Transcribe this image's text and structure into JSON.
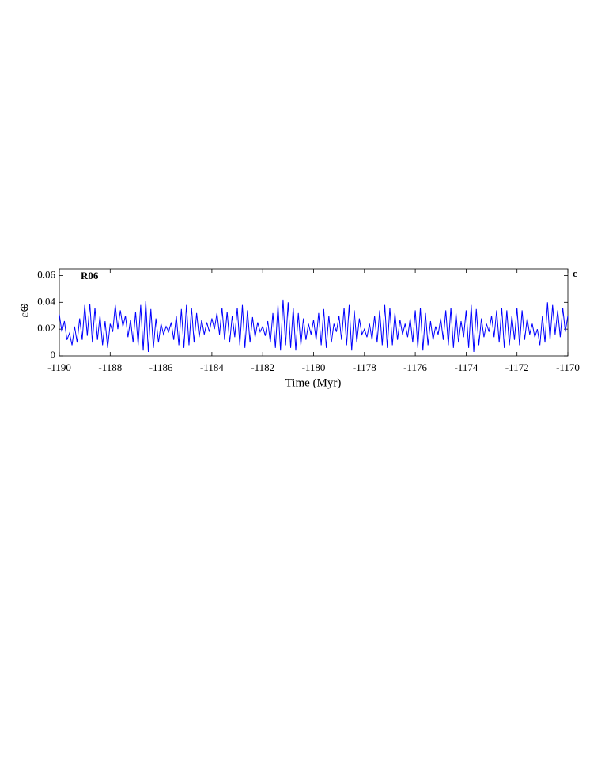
{
  "chart_data": {
    "type": "line",
    "xlabel": "Time (Myr)",
    "ylabel": "ε⊕",
    "annotation": "R06",
    "panel_label": "c",
    "color": "#0000ff",
    "xlim": [
      -1190,
      -1170
    ],
    "xticks": [
      -1190,
      -1188,
      -1186,
      -1184,
      -1182,
      -1180,
      -1178,
      -1176,
      -1174,
      -1172,
      -1170
    ],
    "ylim": [
      0,
      0.065
    ],
    "yticks": [
      0,
      0.02,
      0.04,
      0.06
    ],
    "x": [
      -1190,
      -1189.9,
      -1189.8,
      -1189.7,
      -1189.6,
      -1189.5,
      -1189.4,
      -1189.3,
      -1189.2,
      -1189.1,
      -1189,
      -1188.9,
      -1188.8,
      -1188.7,
      -1188.6,
      -1188.5,
      -1188.4,
      -1188.3,
      -1188.2,
      -1188.1,
      -1188,
      -1187.9,
      -1187.8,
      -1187.7,
      -1187.6,
      -1187.5,
      -1187.4,
      -1187.3,
      -1187.2,
      -1187.1,
      -1187,
      -1186.9,
      -1186.8,
      -1186.7,
      -1186.6,
      -1186.5,
      -1186.4,
      -1186.3,
      -1186.2,
      -1186.1,
      -1186,
      -1185.9,
      -1185.8,
      -1185.7,
      -1185.6,
      -1185.5,
      -1185.4,
      -1185.3,
      -1185.2,
      -1185.1,
      -1185,
      -1184.9,
      -1184.8,
      -1184.7,
      -1184.6,
      -1184.5,
      -1184.4,
      -1184.3,
      -1184.2,
      -1184.1,
      -1184,
      -1183.9,
      -1183.8,
      -1183.7,
      -1183.6,
      -1183.5,
      -1183.4,
      -1183.3,
      -1183.2,
      -1183.1,
      -1183,
      -1182.9,
      -1182.8,
      -1182.7,
      -1182.6,
      -1182.5,
      -1182.4,
      -1182.3,
      -1182.2,
      -1182.1,
      -1182,
      -1181.9,
      -1181.8,
      -1181.7,
      -1181.6,
      -1181.5,
      -1181.4,
      -1181.3,
      -1181.2,
      -1181.1,
      -1181,
      -1180.9,
      -1180.8,
      -1180.7,
      -1180.6,
      -1180.5,
      -1180.4,
      -1180.3,
      -1180.2,
      -1180.1,
      -1180,
      -1179.9,
      -1179.8,
      -1179.7,
      -1179.6,
      -1179.5,
      -1179.4,
      -1179.3,
      -1179.2,
      -1179.1,
      -1179,
      -1178.9,
      -1178.8,
      -1178.7,
      -1178.6,
      -1178.5,
      -1178.4,
      -1178.3,
      -1178.2,
      -1178.1,
      -1178,
      -1177.9,
      -1177.8,
      -1177.7,
      -1177.6,
      -1177.5,
      -1177.4,
      -1177.3,
      -1177.2,
      -1177.1,
      -1177,
      -1176.9,
      -1176.8,
      -1176.7,
      -1176.6,
      -1176.5,
      -1176.4,
      -1176.3,
      -1176.2,
      -1176.1,
      -1176,
      -1175.9,
      -1175.8,
      -1175.7,
      -1175.6,
      -1175.5,
      -1175.4,
      -1175.3,
      -1175.2,
      -1175.1,
      -1175,
      -1174.9,
      -1174.8,
      -1174.7,
      -1174.6,
      -1174.5,
      -1174.4,
      -1174.3,
      -1174.2,
      -1174.1,
      -1174,
      -1173.9,
      -1173.8,
      -1173.7,
      -1173.6,
      -1173.5,
      -1173.4,
      -1173.3,
      -1173.2,
      -1173.1,
      -1173,
      -1172.9,
      -1172.8,
      -1172.7,
      -1172.6,
      -1172.5,
      -1172.4,
      -1172.3,
      -1172.2,
      -1172.1,
      -1172,
      -1171.9,
      -1171.8,
      -1171.7,
      -1171.6,
      -1171.5,
      -1171.4,
      -1171.3,
      -1171.2,
      -1171.1,
      -1171,
      -1170.9,
      -1170.8,
      -1170.7,
      -1170.6,
      -1170.5,
      -1170.4,
      -1170.3,
      -1170.2,
      -1170.1,
      -1170
    ],
    "values": [
      0.031,
      0.018,
      0.026,
      0.012,
      0.017,
      0.008,
      0.022,
      0.01,
      0.028,
      0.012,
      0.038,
      0.015,
      0.039,
      0.01,
      0.036,
      0.012,
      0.03,
      0.008,
      0.026,
      0.006,
      0.024,
      0.018,
      0.038,
      0.02,
      0.034,
      0.022,
      0.03,
      0.014,
      0.027,
      0.01,
      0.033,
      0.008,
      0.038,
      0.004,
      0.041,
      0.003,
      0.035,
      0.006,
      0.028,
      0.01,
      0.024,
      0.016,
      0.022,
      0.018,
      0.025,
      0.012,
      0.03,
      0.008,
      0.035,
      0.006,
      0.038,
      0.008,
      0.036,
      0.01,
      0.032,
      0.014,
      0.027,
      0.016,
      0.025,
      0.018,
      0.028,
      0.02,
      0.032,
      0.016,
      0.036,
      0.012,
      0.033,
      0.01,
      0.03,
      0.014,
      0.036,
      0.008,
      0.038,
      0.006,
      0.034,
      0.01,
      0.029,
      0.014,
      0.025,
      0.018,
      0.022,
      0.015,
      0.026,
      0.01,
      0.032,
      0.006,
      0.038,
      0.004,
      0.042,
      0.008,
      0.04,
      0.006,
      0.036,
      0.004,
      0.032,
      0.008,
      0.028,
      0.012,
      0.024,
      0.016,
      0.027,
      0.012,
      0.032,
      0.008,
      0.035,
      0.006,
      0.03,
      0.01,
      0.024,
      0.018,
      0.03,
      0.012,
      0.036,
      0.008,
      0.038,
      0.004,
      0.034,
      0.01,
      0.028,
      0.016,
      0.02,
      0.014,
      0.024,
      0.012,
      0.03,
      0.01,
      0.034,
      0.008,
      0.038,
      0.006,
      0.036,
      0.008,
      0.032,
      0.012,
      0.027,
      0.016,
      0.024,
      0.014,
      0.028,
      0.01,
      0.034,
      0.006,
      0.036,
      0.004,
      0.032,
      0.008,
      0.026,
      0.012,
      0.022,
      0.016,
      0.028,
      0.012,
      0.034,
      0.008,
      0.036,
      0.006,
      0.032,
      0.01,
      0.026,
      0.014,
      0.034,
      0.006,
      0.038,
      0.003,
      0.035,
      0.008,
      0.028,
      0.014,
      0.024,
      0.018,
      0.03,
      0.014,
      0.034,
      0.01,
      0.036,
      0.006,
      0.034,
      0.008,
      0.03,
      0.012,
      0.036,
      0.008,
      0.034,
      0.012,
      0.028,
      0.016,
      0.024,
      0.014,
      0.02,
      0.008,
      0.03,
      0.01,
      0.04,
      0.012,
      0.038,
      0.016,
      0.034,
      0.014,
      0.036,
      0.018,
      0.03
    ]
  }
}
